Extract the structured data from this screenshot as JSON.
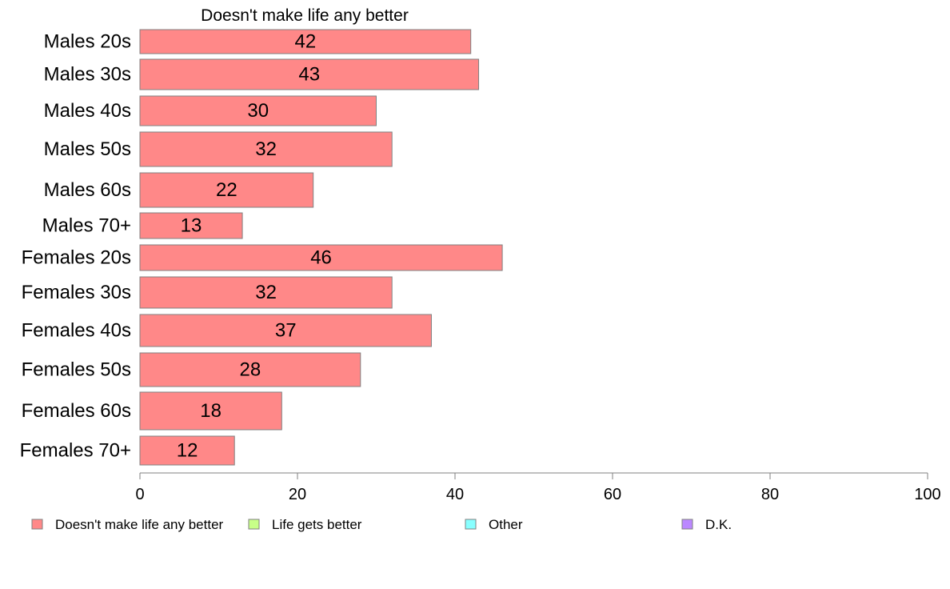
{
  "chart_data": {
    "type": "bar",
    "orientation": "horizontal",
    "title": "Doesn't make life any better",
    "categories": [
      "Males 20s",
      "Males 30s",
      "Males 40s",
      "Males 50s",
      "Males 60s",
      "Males 70+",
      "Females 20s",
      "Females 30s",
      "Females 40s",
      "Females 50s",
      "Females 60s",
      "Females 70+"
    ],
    "series": [
      {
        "name": "Doesn't make life any better",
        "color": "#ff8888",
        "values": [
          42,
          43,
          30,
          32,
          22,
          13,
          46,
          32,
          37,
          28,
          18,
          12
        ]
      }
    ],
    "xlim": [
      0,
      100
    ],
    "xticks": [
      "0",
      "20",
      "40",
      "60",
      "80",
      "100"
    ],
    "grid": false,
    "legend": {
      "position": "bottom",
      "entries": [
        {
          "label": "Doesn't make life any better",
          "color": "#ff8888"
        },
        {
          "label": "Life gets better",
          "color": "#c8ff88"
        },
        {
          "label": "Other",
          "color": "#88ffff"
        },
        {
          "label": "D.K.",
          "color": "#bb88ff"
        }
      ]
    }
  }
}
